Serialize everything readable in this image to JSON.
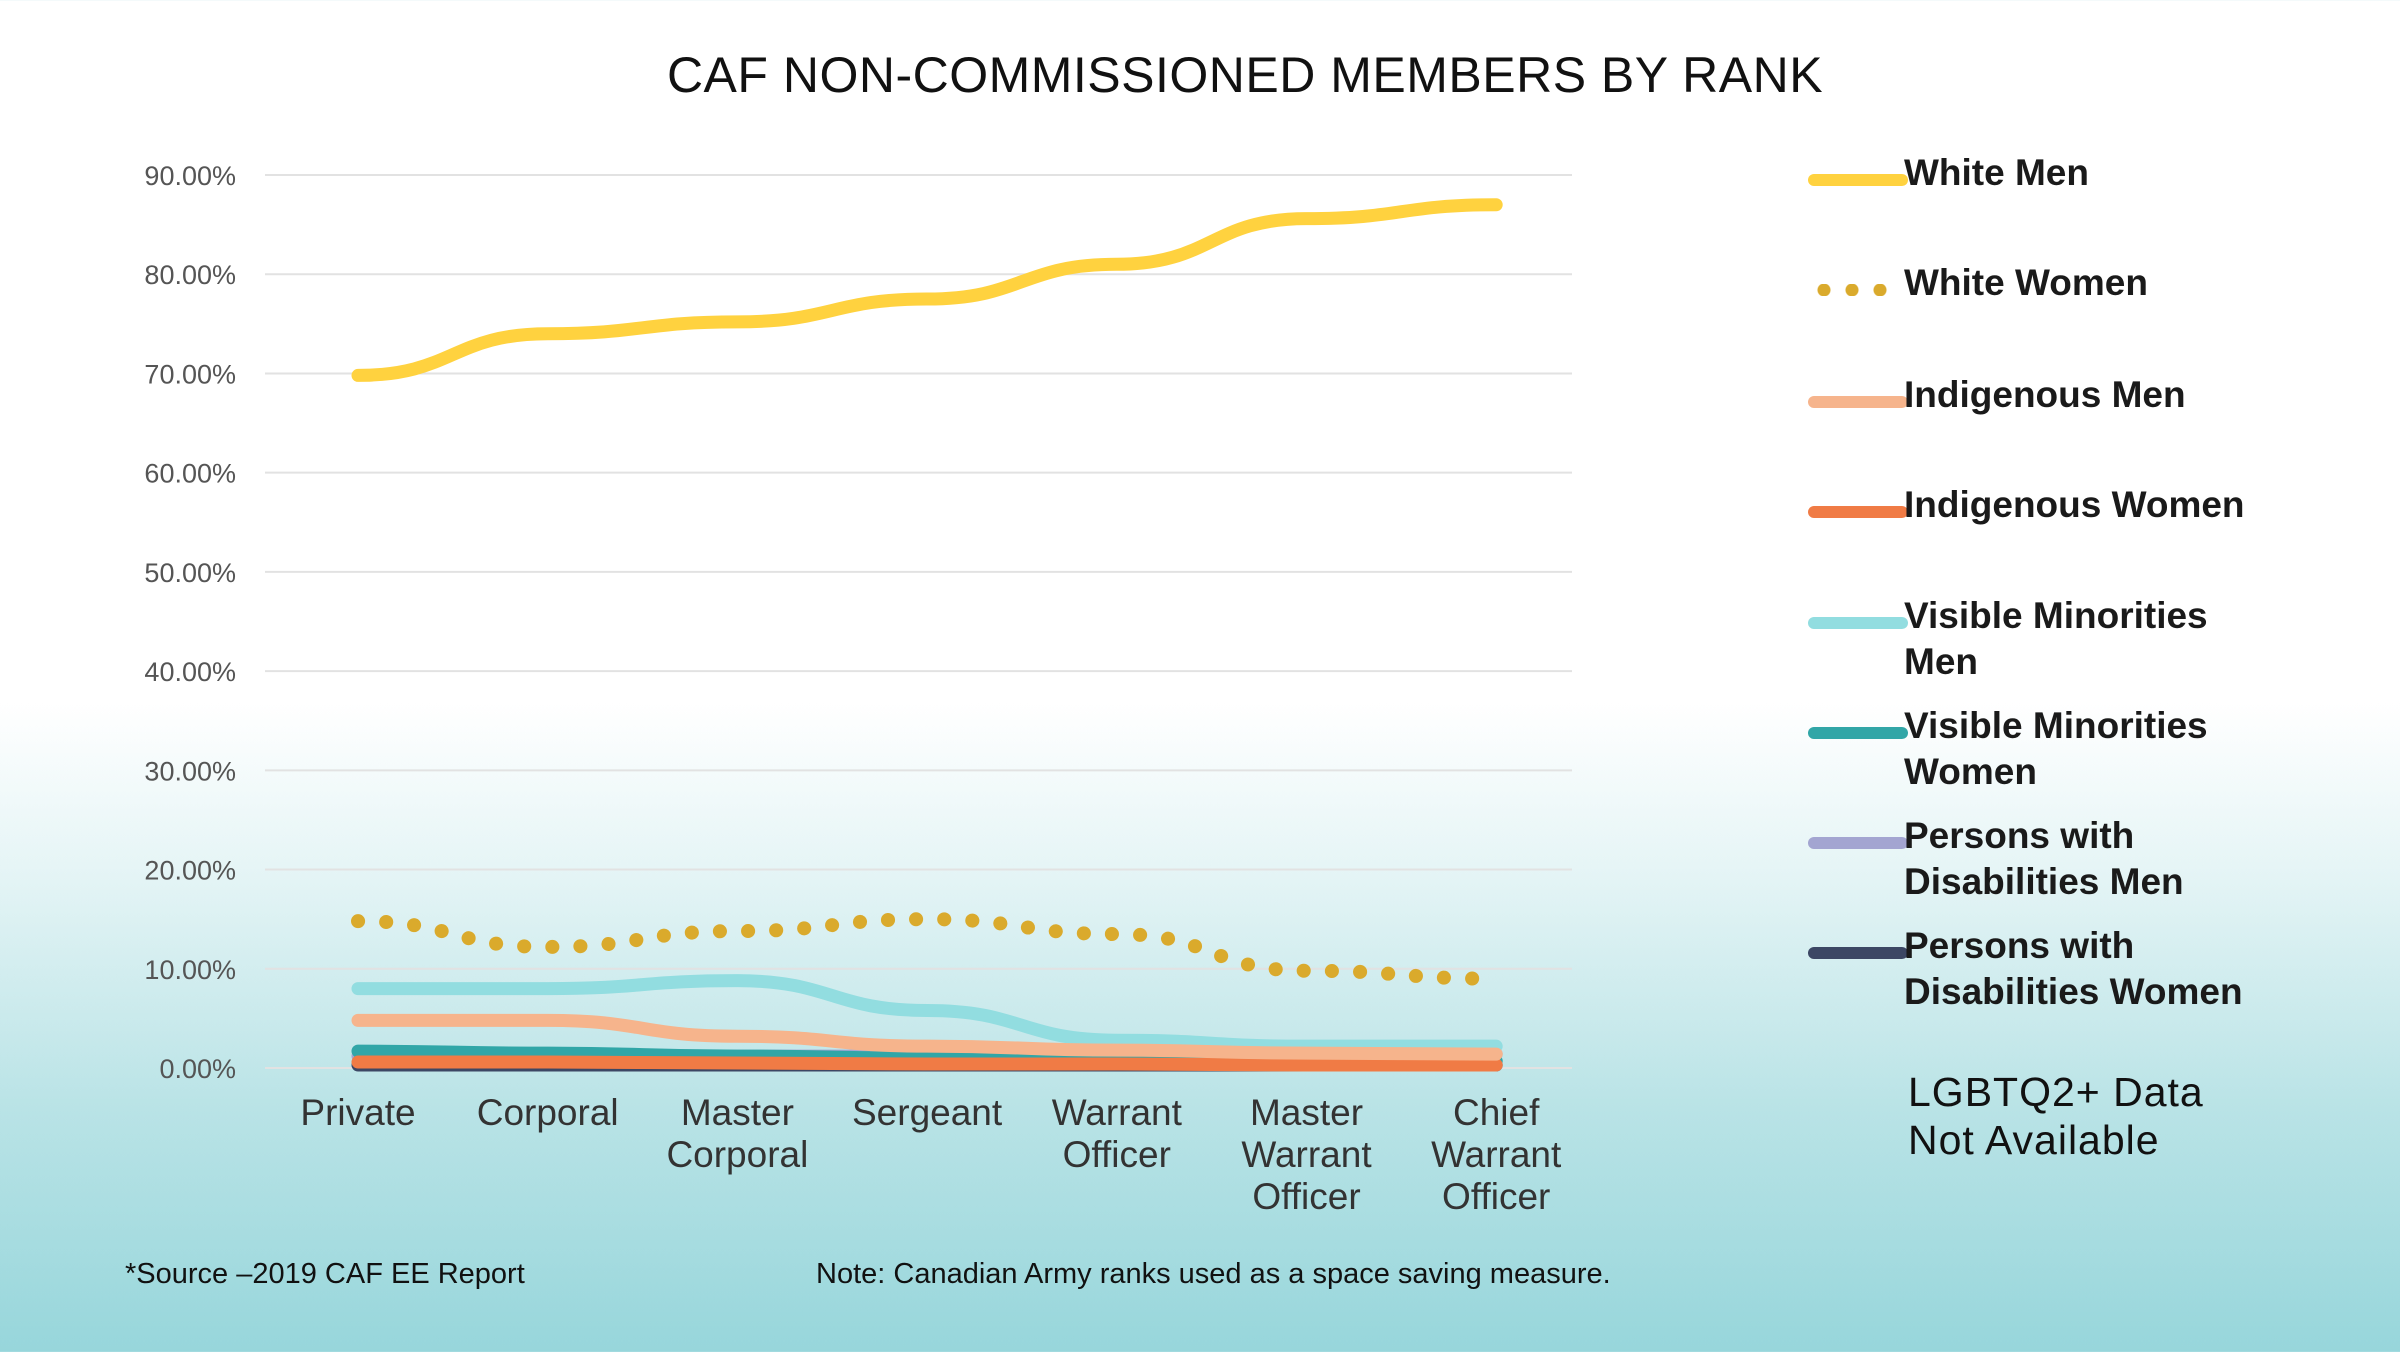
{
  "chart_data": {
    "type": "line",
    "title": "CAF NON-COMMISSIONED MEMBERS BY RANK",
    "xlabel": "",
    "ylabel": "",
    "ylim": [
      0,
      90
    ],
    "yticks": [
      "0.00%",
      "10.00%",
      "20.00%",
      "30.00%",
      "40.00%",
      "50.00%",
      "60.00%",
      "70.00%",
      "80.00%",
      "90.00%"
    ],
    "grid": true,
    "legend_position": "right",
    "categories": [
      "Private",
      "Corporal",
      "Master Corporal",
      "Sergeant",
      "Warrant Officer",
      "Master Warrant Officer",
      "Chief Warrant Officer"
    ],
    "category_lines": [
      [
        "Private"
      ],
      [
        "Corporal"
      ],
      [
        "Master",
        "Corporal"
      ],
      [
        "Sergeant"
      ],
      [
        "Warrant",
        "Officer"
      ],
      [
        "Master",
        "Warrant",
        "Officer"
      ],
      [
        "Chief",
        "Warrant",
        "Officer"
      ]
    ],
    "series": [
      {
        "name": "White Men",
        "label_lines": [
          "White Men"
        ],
        "color": "#FFD23F",
        "style": "solid",
        "values": [
          69.8,
          74.0,
          75.2,
          77.5,
          81.0,
          85.6,
          87.0
        ]
      },
      {
        "name": "White Women",
        "label_lines": [
          "White Women"
        ],
        "color": "#DAAA2C",
        "style": "dotted",
        "values": [
          14.8,
          12.2,
          13.8,
          15.0,
          13.5,
          9.8,
          9.0
        ]
      },
      {
        "name": "Indigenous Men",
        "label_lines": [
          "Indigenous Men"
        ],
        "color": "#F6B48C",
        "style": "solid",
        "values": [
          4.8,
          4.8,
          3.2,
          2.2,
          1.8,
          1.5,
          1.4
        ]
      },
      {
        "name": "Indigenous Women",
        "label_lines": [
          "Indigenous Women"
        ],
        "color": "#F07B45",
        "style": "solid",
        "values": [
          0.6,
          0.6,
          0.5,
          0.4,
          0.4,
          0.3,
          0.3
        ]
      },
      {
        "name": "Visible Minorities Men",
        "label_lines": [
          "Visible Minorities",
          "Men"
        ],
        "color": "#92DDE0",
        "style": "solid",
        "values": [
          8.0,
          8.0,
          8.8,
          5.8,
          2.8,
          2.2,
          2.2
        ]
      },
      {
        "name": "Visible Minorities Women",
        "label_lines": [
          "Visible Minorities",
          "Women"
        ],
        "color": "#31A6A7",
        "style": "solid",
        "values": [
          1.7,
          1.5,
          1.2,
          1.0,
          0.9,
          0.8,
          0.7
        ]
      },
      {
        "name": "Persons with Disabilities Men",
        "label_lines": [
          "Persons with",
          "Disabilities Men"
        ],
        "color": "#A3A5D1",
        "style": "solid",
        "values": [
          1.2,
          1.2,
          1.2,
          1.2,
          1.3,
          1.4,
          1.4
        ]
      },
      {
        "name": "Persons with Disabilities Women",
        "label_lines": [
          "Persons with",
          "Disabilities Women"
        ],
        "color": "#3C4764",
        "style": "solid",
        "values": [
          0.3,
          0.3,
          0.3,
          0.3,
          0.3,
          0.3,
          0.3
        ]
      }
    ]
  },
  "notes": {
    "lgbt_line1": "LGBTQ2+ Data",
    "lgbt_line2": "Not Available",
    "source": "*Source –2019 CAF EE Report",
    "ranks": "Note: Canadian Army ranks used as a space saving measure."
  }
}
